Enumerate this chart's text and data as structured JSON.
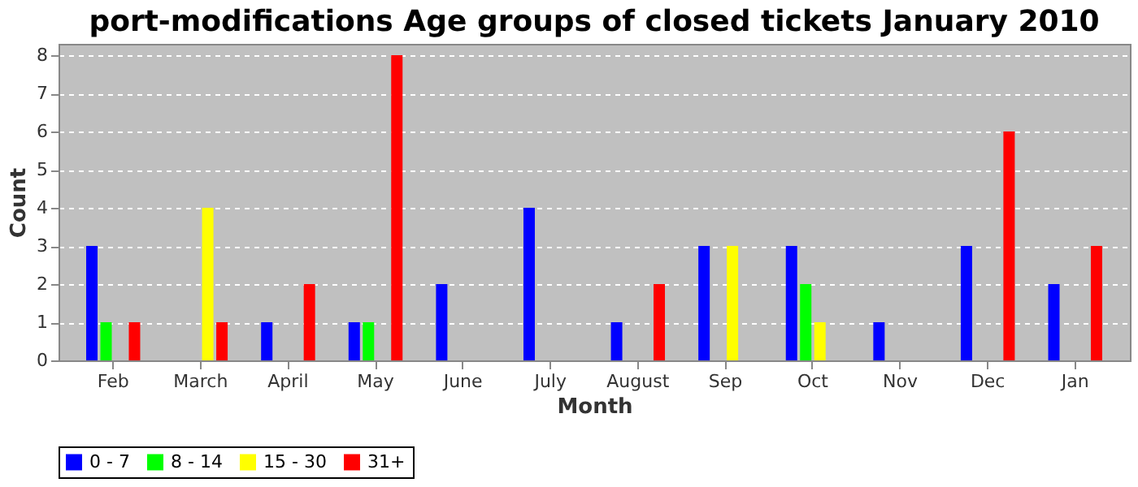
{
  "chart_data": {
    "type": "bar",
    "title": "port-modifications Age groups of closed tickets January 2010",
    "xlabel": "Month",
    "ylabel": "Count",
    "categories": [
      "Feb",
      "March",
      "April",
      "May",
      "June",
      "July",
      "August",
      "Sep",
      "Oct",
      "Nov",
      "Dec",
      "Jan"
    ],
    "series": [
      {
        "name": "0 - 7",
        "color": "#0000ff",
        "values": [
          3,
          0,
          1,
          1,
          2,
          4,
          1,
          3,
          3,
          1,
          3,
          2
        ]
      },
      {
        "name": "8 - 14",
        "color": "#00ff00",
        "values": [
          1,
          0,
          0,
          1,
          0,
          0,
          0,
          0,
          2,
          0,
          0,
          0
        ]
      },
      {
        "name": "15 - 30",
        "color": "#ffff00",
        "values": [
          0,
          4,
          0,
          0,
          0,
          0,
          0,
          3,
          1,
          0,
          0,
          0
        ]
      },
      {
        "name": "31+",
        "color": "#ff0000",
        "values": [
          1,
          1,
          2,
          8,
          0,
          0,
          2,
          0,
          0,
          0,
          6,
          3
        ]
      }
    ],
    "ylim": [
      0,
      8.3
    ],
    "yticks": [
      0,
      1,
      2,
      3,
      4,
      5,
      6,
      7,
      8
    ],
    "grid": "y",
    "legend": "bottom"
  }
}
